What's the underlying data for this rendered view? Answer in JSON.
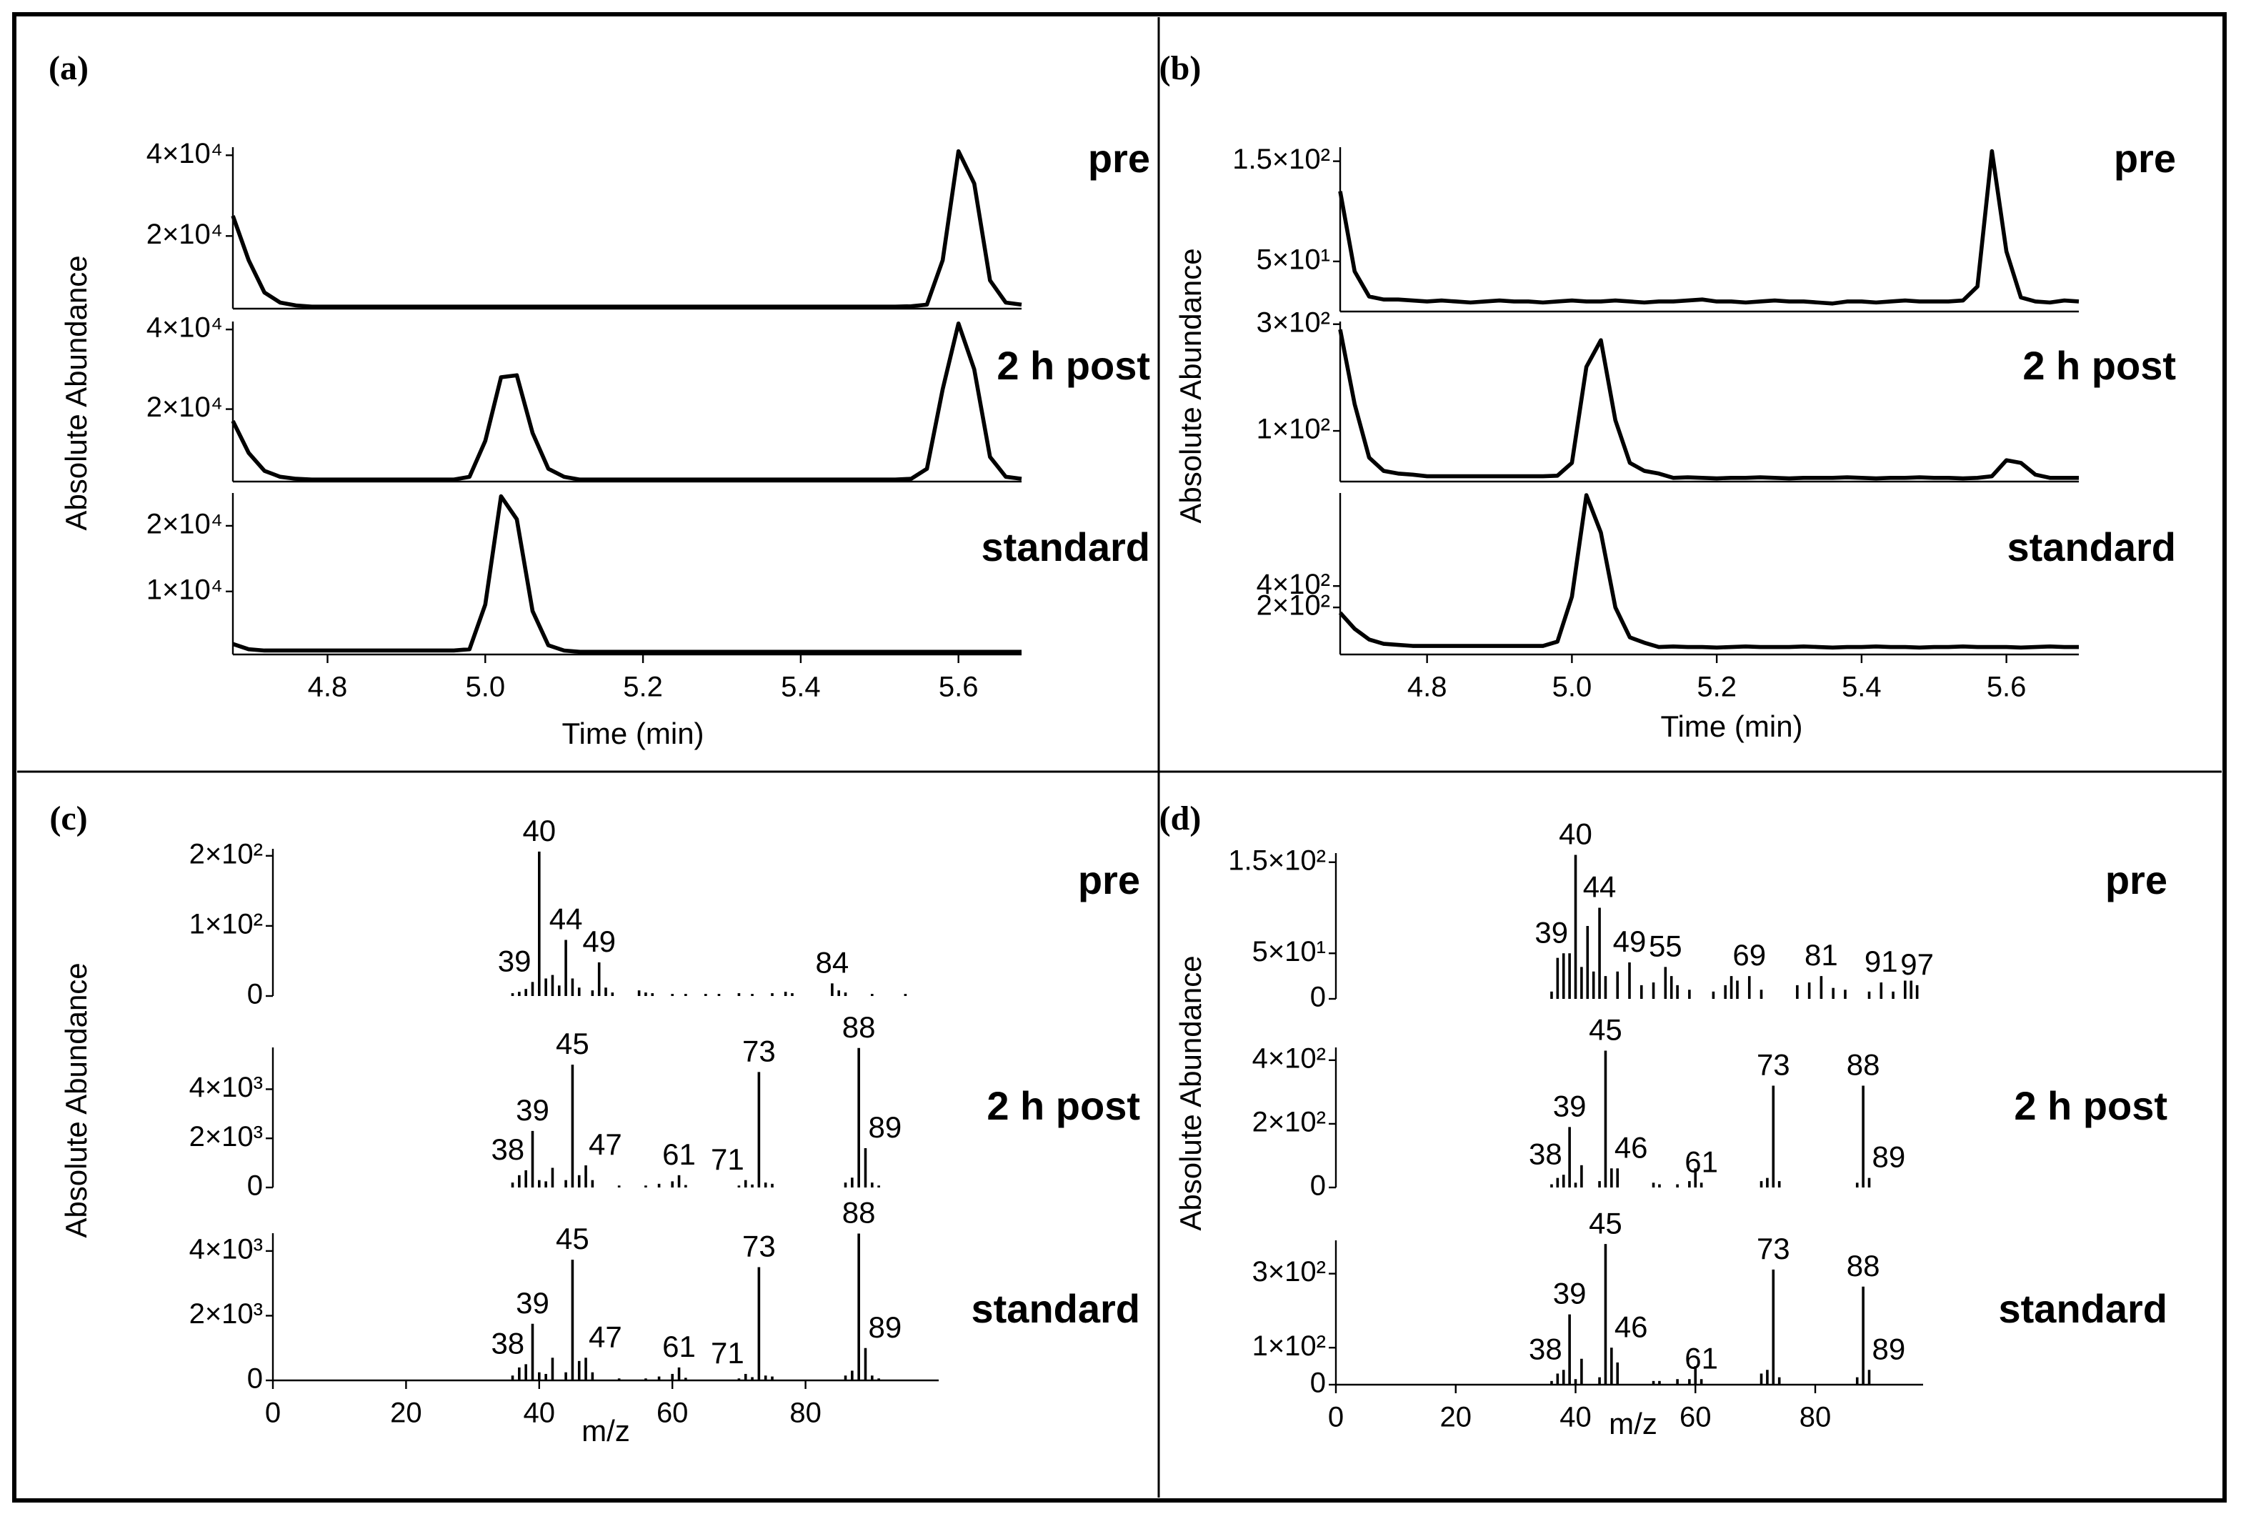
{
  "chart_data": [
    {
      "type": "line",
      "panel_label": "(a)",
      "ylabel": "Absolute Abundance",
      "xlabel": "Time (min)",
      "xlim": [
        4.68,
        5.68
      ],
      "xticks": [
        4.8,
        {
          "value": 5,
          "label": "5.0"
        },
        5.2,
        5.4,
        5.6
      ],
      "x": [
        4.68,
        4.7,
        4.72,
        4.74,
        4.76,
        4.78,
        4.8,
        4.82,
        4.84,
        4.86,
        4.88,
        4.9,
        4.92,
        4.94,
        4.96,
        4.98,
        5,
        5.02,
        5.04,
        5.06,
        5.08,
        5.1,
        5.12,
        5.14,
        5.16,
        5.18,
        5.2,
        5.22,
        5.24,
        5.26,
        5.28,
        5.3,
        5.32,
        5.34,
        5.36,
        5.38,
        5.4,
        5.42,
        5.44,
        5.46,
        5.48,
        5.5,
        5.52,
        5.54,
        5.56,
        5.58,
        5.6,
        5.62,
        5.64,
        5.66,
        5.68
      ],
      "series": [
        {
          "name": "pre",
          "color": "#000000",
          "ylim": [
            2000,
            42000
          ],
          "yticks": [
            {
              "value": 20000,
              "label": "2×10⁴"
            },
            {
              "value": 40000,
              "label": "4×10⁴"
            }
          ],
          "values": [
            25000,
            14000,
            6000,
            3500,
            2800,
            2500,
            2500,
            2500,
            2500,
            2500,
            2500,
            2500,
            2500,
            2500,
            2500,
            2500,
            2500,
            2500,
            2500,
            2500,
            2500,
            2500,
            2500,
            2500,
            2500,
            2500,
            2500,
            2500,
            2500,
            2500,
            2500,
            2500,
            2500,
            2500,
            2500,
            2500,
            2500,
            2500,
            2500,
            2500,
            2500,
            2500,
            2500,
            2600,
            3000,
            14000,
            41000,
            33000,
            9000,
            3500,
            3000
          ]
        },
        {
          "name": "2 h post",
          "color": "#000000",
          "ylim": [
            1800,
            42000
          ],
          "yticks": [
            {
              "value": 20000,
              "label": "2×10⁴"
            },
            {
              "value": 40000,
              "label": "4×10⁴"
            }
          ],
          "values": [
            17000,
            9000,
            4500,
            3000,
            2500,
            2300,
            2300,
            2300,
            2300,
            2300,
            2300,
            2300,
            2300,
            2300,
            2300,
            3000,
            12000,
            28000,
            28500,
            14000,
            5000,
            3000,
            2300,
            2300,
            2300,
            2300,
            2300,
            2300,
            2300,
            2300,
            2300,
            2300,
            2300,
            2300,
            2300,
            2300,
            2300,
            2300,
            2300,
            2300,
            2300,
            2300,
            2300,
            2500,
            5000,
            25000,
            41500,
            30000,
            8000,
            3000,
            2500
          ]
        },
        {
          "name": "standard",
          "color": "#000000",
          "ylim": [
            400,
            25000
          ],
          "yticks": [
            {
              "value": 10000,
              "label": "1×10⁴"
            },
            {
              "value": 20000,
              "label": "2×10⁴"
            }
          ],
          "values": [
            2000,
            1200,
            1000,
            1000,
            1000,
            1000,
            1000,
            1000,
            1000,
            1000,
            1000,
            1000,
            1000,
            1000,
            1000,
            1200,
            8000,
            24500,
            21000,
            7000,
            1800,
            1000,
            800,
            800,
            800,
            800,
            800,
            800,
            800,
            800,
            800,
            800,
            800,
            800,
            800,
            800,
            800,
            800,
            800,
            800,
            800,
            800,
            800,
            800,
            800,
            800,
            800,
            800,
            800,
            800,
            800
          ]
        }
      ]
    },
    {
      "type": "line",
      "panel_label": "(b)",
      "ylabel": "Absolute Abundance",
      "xlabel": "Time (min)",
      "xlim": [
        4.68,
        5.7
      ],
      "xticks": [
        4.8,
        {
          "value": 5,
          "label": "5.0"
        },
        5.2,
        5.4,
        5.6
      ],
      "x": [
        4.68,
        4.7,
        4.72,
        4.74,
        4.76,
        4.78,
        4.8,
        4.82,
        4.84,
        4.86,
        4.88,
        4.9,
        4.92,
        4.94,
        4.96,
        4.98,
        5,
        5.02,
        5.04,
        5.06,
        5.08,
        5.1,
        5.12,
        5.14,
        5.16,
        5.18,
        5.2,
        5.22,
        5.24,
        5.26,
        5.28,
        5.3,
        5.32,
        5.34,
        5.36,
        5.38,
        5.4,
        5.42,
        5.44,
        5.46,
        5.48,
        5.5,
        5.52,
        5.54,
        5.56,
        5.58,
        5.6,
        5.62,
        5.64,
        5.66,
        5.68,
        5.7
      ],
      "series": [
        {
          "name": "pre",
          "color": "#000000",
          "ylim": [
            0,
            164
          ],
          "yticks": [
            {
              "value": 50,
              "label": "5×10¹"
            },
            {
              "value": 150,
              "label": "1.5×10²"
            }
          ],
          "values": [
            120,
            40,
            15,
            12,
            12,
            11,
            10,
            11,
            10,
            9,
            10,
            11,
            10,
            10,
            9,
            10,
            11,
            10,
            10,
            11,
            10,
            9,
            10,
            10,
            11,
            12,
            10,
            10,
            9,
            10,
            11,
            10,
            10,
            9,
            8,
            10,
            10,
            9,
            10,
            11,
            10,
            10,
            10,
            11,
            25,
            160,
            60,
            14,
            10,
            9,
            11,
            10
          ]
        },
        {
          "name": "2 h post",
          "color": "#000000",
          "ylim": [
            5,
            305
          ],
          "yticks": [
            {
              "value": 100,
              "label": "1×10²"
            },
            {
              "value": 300,
              "label": "3×10²"
            }
          ],
          "values": [
            290,
            150,
            50,
            25,
            20,
            18,
            15,
            15,
            15,
            15,
            15,
            15,
            15,
            15,
            15,
            16,
            40,
            220,
            270,
            120,
            40,
            25,
            20,
            12,
            13,
            12,
            11,
            12,
            12,
            13,
            12,
            11,
            12,
            12,
            12,
            13,
            12,
            11,
            12,
            12,
            13,
            12,
            12,
            11,
            12,
            15,
            45,
            40,
            18,
            12,
            12,
            12
          ]
        },
        {
          "name": "standard",
          "color": "#000000",
          "ylim": [
            -240,
            1270
          ],
          "yticks": [
            {
              "value": 200,
              "label": "2×10²"
            },
            {
              "value": 400,
              "label": "4×10²"
            }
          ],
          "values": [
            150,
            0,
            -100,
            -140,
            -150,
            -160,
            -160,
            -160,
            -160,
            -160,
            -160,
            -160,
            -160,
            -160,
            -160,
            -120,
            300,
            1250,
            900,
            200,
            -80,
            -130,
            -170,
            -165,
            -170,
            -170,
            -175,
            -170,
            -165,
            -170,
            -170,
            -170,
            -165,
            -170,
            -175,
            -170,
            -170,
            -165,
            -170,
            -170,
            -175,
            -170,
            -170,
            -165,
            -170,
            -170,
            -170,
            -175,
            -170,
            -165,
            -170,
            -170
          ]
        }
      ]
    },
    {
      "type": "bar",
      "panel_label": "(c)",
      "ylabel": "Absolute Abundance",
      "xlabel": "m/z",
      "xlim": [
        0,
        100
      ],
      "xticks": [
        0,
        20,
        40,
        60,
        80
      ],
      "series": [
        {
          "name": "pre",
          "color": "#000000",
          "ylim": [
            0,
            210
          ],
          "yticks": [
            0,
            {
              "value": 100,
              "label": "1×10²"
            },
            {
              "value": 200,
              "label": "2×10²"
            }
          ],
          "x": [
            36,
            37,
            38,
            39,
            40,
            41,
            42,
            43,
            44,
            45,
            46,
            48,
            49,
            50,
            51,
            55,
            56,
            57,
            60,
            62,
            65,
            67,
            70,
            72,
            75,
            77,
            78,
            84,
            85,
            86,
            90,
            95
          ],
          "values": [
            4,
            6,
            10,
            20,
            206,
            25,
            30,
            15,
            80,
            25,
            12,
            8,
            48,
            12,
            5,
            8,
            5,
            4,
            3,
            3,
            3,
            3,
            4,
            3,
            4,
            6,
            4,
            18,
            8,
            5,
            3,
            3
          ],
          "peak_labels": [
            40,
            39,
            44,
            49,
            84
          ]
        },
        {
          "name": "2 h post",
          "color": "#000000",
          "ylim": [
            0,
            5700
          ],
          "yticks": [
            0,
            {
              "value": 2000,
              "label": "2×10³"
            },
            {
              "value": 4000,
              "label": "4×10³"
            }
          ],
          "x": [
            36,
            37,
            38,
            39,
            40,
            41,
            42,
            44,
            45,
            46,
            47,
            48,
            52,
            56,
            58,
            60,
            61,
            62,
            70,
            71,
            72,
            73,
            74,
            75,
            86,
            87,
            88,
            89,
            90,
            91
          ],
          "values": [
            200,
            500,
            700,
            2300,
            300,
            250,
            800,
            300,
            5000,
            500,
            900,
            300,
            80,
            80,
            150,
            250,
            500,
            100,
            80,
            300,
            120,
            4700,
            200,
            150,
            200,
            400,
            5680,
            1600,
            200,
            80
          ],
          "peak_labels": [
            38,
            39,
            45,
            47,
            61,
            71,
            73,
            88,
            89
          ]
        },
        {
          "name": "standard",
          "color": "#000000",
          "ylim": [
            0,
            4550
          ],
          "yticks": [
            0,
            {
              "value": 2000,
              "label": "2×10³"
            },
            {
              "value": 4000,
              "label": "4×10³"
            }
          ],
          "x": [
            36,
            37,
            38,
            39,
            40,
            41,
            42,
            44,
            45,
            46,
            47,
            48,
            52,
            56,
            58,
            60,
            61,
            62,
            70,
            71,
            72,
            73,
            74,
            75,
            86,
            87,
            88,
            89,
            90,
            91
          ],
          "values": [
            150,
            400,
            500,
            1750,
            250,
            200,
            700,
            250,
            3730,
            600,
            700,
            250,
            60,
            60,
            120,
            200,
            400,
            80,
            60,
            200,
            100,
            3500,
            150,
            120,
            150,
            300,
            4540,
            1000,
            150,
            60
          ],
          "peak_labels": [
            38,
            39,
            45,
            47,
            61,
            71,
            73,
            88,
            89
          ]
        }
      ]
    },
    {
      "type": "bar",
      "panel_label": "(d)",
      "ylabel": "Absolute Abundance",
      "xlabel": "m/z",
      "xlim": [
        0,
        98
      ],
      "xticks": [
        0,
        20,
        40,
        60,
        80
      ],
      "series": [
        {
          "name": "pre",
          "color": "#000000",
          "ylim": [
            0,
            160
          ],
          "yticks": [
            0,
            {
              "value": 50,
              "label": "5×10¹"
            },
            {
              "value": 150,
              "label": "1.5×10²"
            }
          ],
          "x": [
            36,
            37,
            38,
            39,
            40,
            41,
            42,
            43,
            44,
            45,
            47,
            49,
            51,
            53,
            55,
            56,
            57,
            59,
            63,
            65,
            66,
            67,
            69,
            71,
            77,
            79,
            81,
            83,
            85,
            89,
            91,
            93,
            95,
            96,
            97
          ],
          "values": [
            8,
            45,
            50,
            50,
            158,
            35,
            80,
            30,
            100,
            25,
            30,
            40,
            15,
            18,
            35,
            25,
            15,
            10,
            8,
            15,
            25,
            20,
            25,
            10,
            15,
            18,
            25,
            12,
            10,
            8,
            18,
            8,
            20,
            20,
            15
          ],
          "peak_labels": [
            40,
            39,
            44,
            49,
            55,
            69,
            81,
            91,
            97
          ]
        },
        {
          "name": "2 h post",
          "color": "#000000",
          "ylim": [
            0,
            440
          ],
          "yticks": [
            0,
            {
              "value": 200,
              "label": "2×10²"
            },
            {
              "value": 400,
              "label": "4×10²"
            }
          ],
          "x": [
            36,
            37,
            38,
            39,
            40,
            41,
            44,
            45,
            46,
            47,
            53,
            54,
            57,
            59,
            60,
            61,
            71,
            72,
            73,
            74,
            87,
            88,
            89
          ],
          "values": [
            10,
            30,
            40,
            190,
            15,
            70,
            20,
            430,
            60,
            60,
            15,
            10,
            10,
            20,
            60,
            15,
            20,
            30,
            320,
            20,
            15,
            320,
            30
          ],
          "peak_labels": [
            38,
            39,
            45,
            46,
            61,
            73,
            88,
            89
          ]
        },
        {
          "name": "standard",
          "color": "#000000",
          "ylim": [
            0,
            390
          ],
          "yticks": [
            0,
            {
              "value": 100,
              "label": "1×10²"
            },
            {
              "value": 300,
              "label": "3×10²"
            }
          ],
          "x": [
            36,
            37,
            38,
            39,
            40,
            41,
            44,
            45,
            46,
            47,
            53,
            54,
            57,
            59,
            60,
            61,
            71,
            72,
            73,
            74,
            87,
            88,
            89
          ],
          "values": [
            10,
            30,
            40,
            190,
            15,
            70,
            20,
            380,
            100,
            60,
            10,
            10,
            15,
            15,
            50,
            15,
            30,
            40,
            311,
            20,
            20,
            265,
            40
          ],
          "peak_labels": [
            38,
            39,
            45,
            46,
            61,
            73,
            88,
            89
          ]
        }
      ]
    }
  ]
}
